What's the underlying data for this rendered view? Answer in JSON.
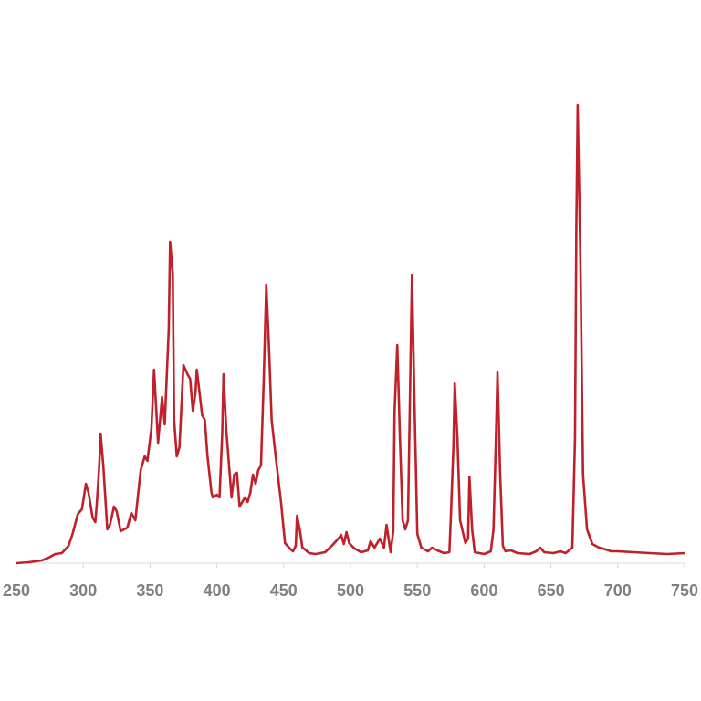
{
  "chart_data": {
    "type": "line",
    "x": [
      250,
      259,
      269,
      274,
      279,
      284,
      289,
      292,
      296,
      299,
      302,
      304,
      307,
      309,
      310,
      312,
      313,
      315,
      318,
      320,
      323,
      325,
      328,
      333,
      336,
      339,
      343,
      346,
      348,
      351,
      353,
      356,
      359,
      361,
      364,
      365,
      367,
      368,
      370,
      372,
      374,
      375,
      378,
      380,
      382,
      384,
      385,
      387,
      389,
      391,
      393,
      396,
      397,
      400,
      402,
      404,
      405,
      407,
      411,
      413,
      415,
      417,
      419,
      421,
      423,
      425,
      427,
      429,
      431,
      433,
      435,
      437,
      439,
      441,
      444,
      448,
      451,
      454,
      457,
      459,
      460,
      462,
      464,
      466,
      469,
      474,
      481,
      486,
      491,
      493,
      495,
      497,
      499,
      503,
      508,
      513,
      515,
      518,
      522,
      525,
      527,
      530,
      532,
      533,
      535,
      537,
      539,
      541,
      543,
      544,
      546,
      548,
      550,
      553,
      558,
      561,
      565,
      570,
      574,
      575,
      577,
      578,
      580,
      582,
      586,
      588,
      589,
      591,
      593,
      600,
      605,
      607,
      609,
      610,
      612,
      614,
      616,
      620,
      625,
      634,
      639,
      642,
      645,
      652,
      657,
      661,
      666,
      668,
      669,
      670,
      672,
      674,
      677,
      681,
      686,
      689,
      695,
      700,
      712,
      724,
      737,
      750
    ],
    "series": [
      {
        "color": "#c0202a",
        "values": [
          0,
          0.2,
          0.6,
          1.2,
          2,
          2.2,
          3.8,
          6.4,
          10.8,
          11.8,
          17.4,
          15.4,
          10,
          9,
          12.4,
          21.4,
          28.4,
          21.4,
          7.4,
          8.4,
          12.4,
          11.4,
          7,
          7.8,
          11,
          9.4,
          20.4,
          23.4,
          22.4,
          29.4,
          42.4,
          26.4,
          36.4,
          30.4,
          51.4,
          70.4,
          63.4,
          31.4,
          23.4,
          25.4,
          37.4,
          43.4,
          41.4,
          40.4,
          33.4,
          37.4,
          42.4,
          37.4,
          32.4,
          31.4,
          23.4,
          15.4,
          14.4,
          15,
          14.4,
          28.4,
          41.4,
          29.4,
          14.4,
          19.4,
          19.8,
          12.4,
          13.4,
          14.4,
          13.4,
          15.4,
          19.4,
          17.4,
          20.4,
          21.4,
          39.4,
          61,
          47.4,
          31.4,
          23.4,
          13.4,
          4.4,
          3.4,
          2.6,
          3.8,
          10.4,
          7.4,
          3.4,
          3,
          2.2,
          2,
          2.4,
          3.8,
          5.4,
          6.2,
          4.2,
          6.8,
          4.4,
          3.2,
          2.4,
          2.8,
          4.8,
          3.4,
          5.4,
          3.4,
          8.4,
          2.4,
          7,
          33.4,
          47.8,
          27.4,
          9.4,
          7.4,
          9.4,
          27.4,
          63.2,
          33.4,
          6.4,
          3.4,
          2.6,
          3.4,
          2.8,
          2.2,
          2.4,
          9.4,
          25.4,
          39.4,
          27.4,
          9.4,
          4.4,
          5.4,
          19,
          7.4,
          2.4,
          2,
          2.6,
          7.4,
          29.4,
          41.8,
          19.4,
          3.8,
          2.6,
          2.8,
          2.2,
          2,
          2.6,
          3.4,
          2.4,
          2.2,
          2.6,
          2.2,
          3.4,
          27.4,
          73.4,
          100.4,
          67.4,
          19.4,
          7.4,
          4.2,
          3.4,
          3.2,
          2.6,
          2.6,
          2.4,
          2.2,
          2,
          2.2
        ]
      }
    ],
    "xlim": [
      250,
      750
    ],
    "xticks": [
      250,
      300,
      350,
      400,
      450,
      500,
      550,
      600,
      650,
      700,
      750
    ],
    "ylim": [
      0,
      102
    ]
  }
}
